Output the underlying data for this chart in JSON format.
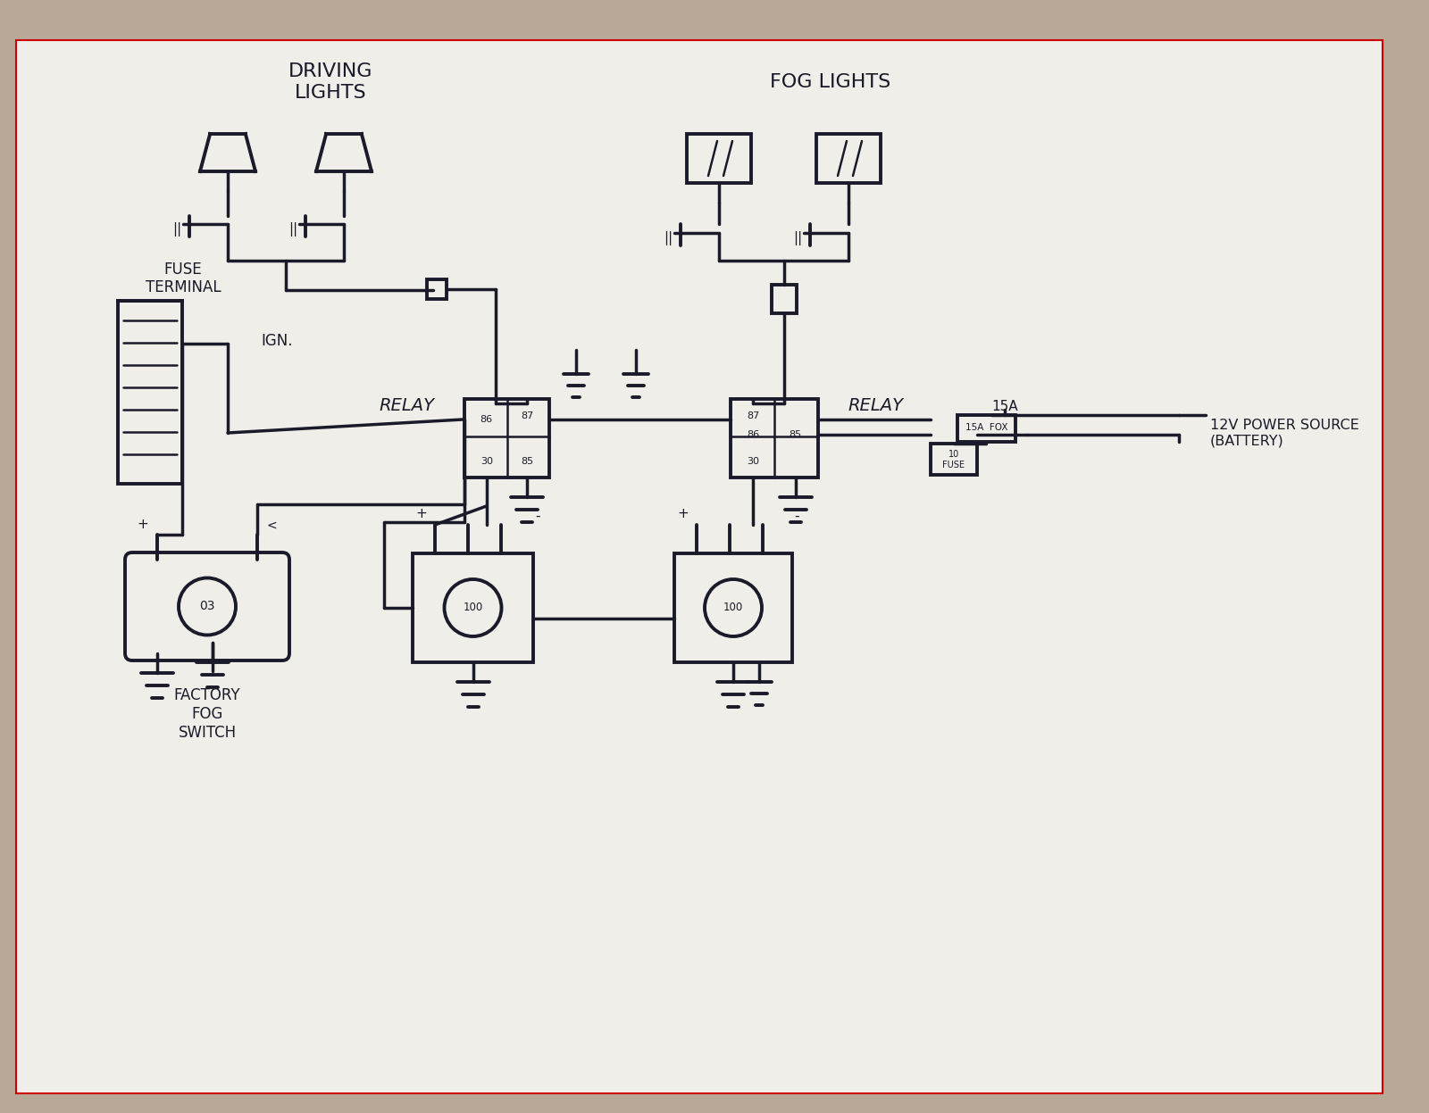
{
  "bg_color": "#b8a898",
  "paper_color": "#f0eee8",
  "line_color": "#1a1a2a",
  "lw": 2.8,
  "lw_thin": 1.8,
  "lw_wire": 2.5,
  "title_fog": "FOG LIGHTS",
  "title_driving": "DRIVING\nLIGHTS",
  "label_relay1": "RELAY",
  "label_relay2": "RELAY",
  "label_fuse_terminal": "FUSE\nTERMINAL",
  "label_ign": "IGN.",
  "label_factory": "FACTORY\nFOG\nSWITCH",
  "label_battery": "12V POWER SOURCE\n(BATTERY)",
  "label_15a": "15A",
  "label_15a_fuse": "15A  FOX",
  "label_10_fuse": "10\nFUSE"
}
